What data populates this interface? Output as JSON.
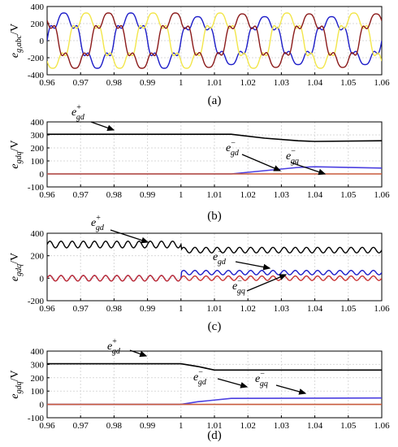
{
  "chart_data": [
    {
      "panel": "a",
      "type": "line",
      "caption": "(a)",
      "ylabel_main": "e",
      "ylabel_sub": "g,abc",
      "ylabel_unit": "/V",
      "xlim": [
        0.96,
        1.06
      ],
      "ylim": [
        -400,
        400
      ],
      "xticks": [
        "0.96",
        "0.97",
        "0.98",
        "0.99",
        "1",
        "1.01",
        "1.02",
        "1.03",
        "1.04",
        "1.05",
        "1.06"
      ],
      "yticks": [
        "400",
        "200",
        "0",
        "-200",
        "-400"
      ],
      "grid": true,
      "frequency_hz": 50,
      "series": [
        {
          "phase_deg": 0,
          "amplitude_before": 300,
          "amplitude_after": 260,
          "color": "#1c1cc8"
        },
        {
          "phase_deg": -120,
          "amplitude_before": 300,
          "amplitude_after": 300,
          "color": "#f2e64a"
        },
        {
          "phase_deg": 120,
          "amplitude_before": 300,
          "amplitude_after": 290,
          "color": "#8b1a1a"
        }
      ]
    },
    {
      "panel": "b",
      "type": "line",
      "caption": "(b)",
      "ylabel_main": "e",
      "ylabel_sub": "gdq",
      "ylabel_unit": "/V",
      "xlim": [
        0.96,
        1.06
      ],
      "ylim": [
        -100,
        400
      ],
      "xticks": [
        "0.96",
        "0.97",
        "0.98",
        "0.99",
        "1",
        "1.01",
        "1.02",
        "1.03",
        "1.04",
        "1.05",
        "1.06"
      ],
      "yticks": [
        "400",
        "300",
        "200",
        "100",
        "0",
        "-100"
      ],
      "grid": true,
      "series": [
        {
          "id": "pos_d",
          "color": "#000000",
          "x": [
            0.96,
            1.015,
            1.025,
            1.035,
            1.04,
            1.06
          ],
          "y": [
            305,
            305,
            275,
            255,
            250,
            255
          ]
        },
        {
          "id": "neg_d",
          "color": "#4b3fe0",
          "x": [
            0.96,
            1.015,
            1.025,
            1.035,
            1.04,
            1.06
          ],
          "y": [
            0,
            0,
            25,
            50,
            55,
            45
          ]
        },
        {
          "id": "neg_q",
          "color": "#c85a3c",
          "x": [
            0.96,
            1.06
          ],
          "y": [
            0,
            0
          ]
        }
      ],
      "annotations": [
        {
          "base": "e",
          "sub": "gd",
          "sup": "+"
        },
        {
          "base": "e",
          "sub": "gd",
          "sup": "−"
        },
        {
          "base": "e",
          "sub": "gq",
          "sup": "−"
        }
      ]
    },
    {
      "panel": "c",
      "type": "line",
      "caption": "(c)",
      "ylabel_main": "e",
      "ylabel_sub": "gdq",
      "ylabel_unit": "/V",
      "xlim": [
        0.96,
        1.06
      ],
      "ylim": [
        -200,
        400
      ],
      "xticks": [
        "0.96",
        "0.97",
        "0.98",
        "0.99",
        "1",
        "1.01",
        "1.02",
        "1.03",
        "1.04",
        "1.05",
        "1.06"
      ],
      "yticks": [
        "400",
        "200",
        "0",
        "-200"
      ],
      "grid": true,
      "ripple_frequency_hz": 300,
      "series": [
        {
          "id": "pos_d",
          "color": "#000000",
          "mean_before": 300,
          "ripple_before": 30,
          "mean_after": 250,
          "ripple_after": 25
        },
        {
          "id": "neg_d",
          "color": "#1c1cc8",
          "mean_before": 0,
          "ripple_before": 25,
          "mean_after": 50,
          "ripple_after": 20
        },
        {
          "id": "neg_q",
          "color": "#c83232",
          "mean_before": 0,
          "ripple_before": 25,
          "mean_after": 0,
          "ripple_after": 20
        }
      ],
      "annotations": [
        {
          "base": "e",
          "sub": "gd",
          "sup": "+"
        },
        {
          "base": "e",
          "sub": "gd",
          "sup": "−"
        },
        {
          "base": "e",
          "sub": "gq",
          "sup": "−"
        }
      ]
    },
    {
      "panel": "d",
      "type": "line",
      "caption": "(d)",
      "ylabel_main": "e",
      "ylabel_sub": "gdq",
      "ylabel_unit": "/V",
      "xlim": [
        0.96,
        1.06
      ],
      "ylim": [
        -100,
        400
      ],
      "xticks": [
        "0.96",
        "0.97",
        "0.98",
        "0.99",
        "1",
        "1.01",
        "1.02",
        "1.03",
        "1.04",
        "1.05",
        "1.06"
      ],
      "yticks": [
        "400",
        "300",
        "200",
        "100",
        "0",
        "-100"
      ],
      "grid": true,
      "series": [
        {
          "id": "pos_d",
          "color": "#000000",
          "x": [
            0.96,
            1.0,
            1.005,
            1.01,
            1.06
          ],
          "y": [
            305,
            305,
            285,
            258,
            258
          ]
        },
        {
          "id": "neg_d",
          "color": "#4b3fe0",
          "x": [
            0.96,
            1.0,
            1.005,
            1.015,
            1.06
          ],
          "y": [
            0,
            0,
            20,
            45,
            48
          ]
        },
        {
          "id": "neg_q",
          "color": "#c85a3c",
          "x": [
            0.96,
            1.06
          ],
          "y": [
            0,
            0
          ]
        }
      ],
      "annotations": [
        {
          "base": "e",
          "sub": "gd",
          "sup": "+"
        },
        {
          "base": "e",
          "sub": "gd",
          "sup": "−"
        },
        {
          "base": "e",
          "sub": "gq",
          "sup": "−"
        }
      ]
    }
  ]
}
